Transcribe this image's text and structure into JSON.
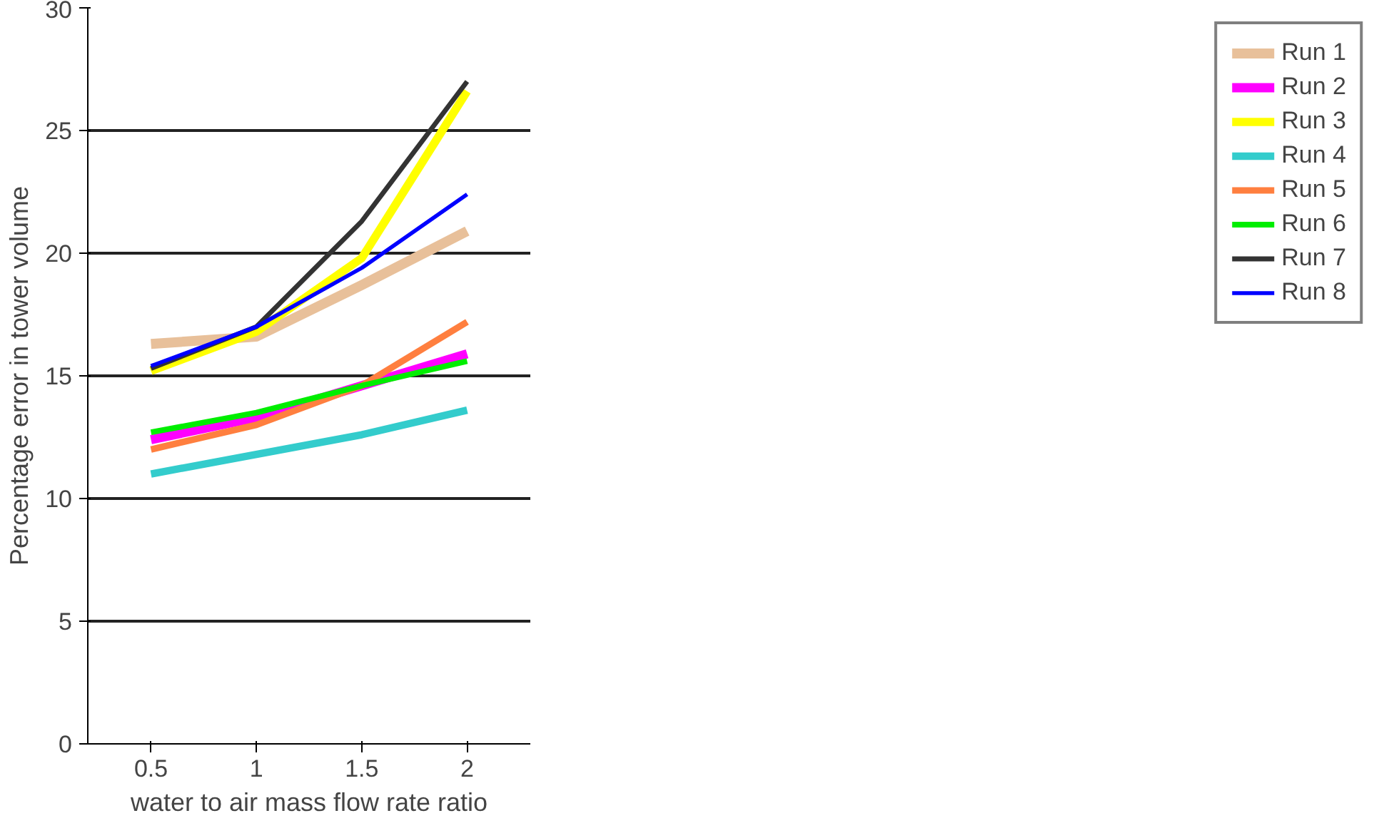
{
  "chart_data": {
    "type": "line",
    "xlabel": "water to air mass flow rate ratio",
    "ylabel": "Percentage error in tower volume",
    "categories": [
      "0.5",
      "1",
      "1.5",
      "2"
    ],
    "ylim": [
      0,
      30
    ],
    "yticks": [
      0,
      5,
      10,
      15,
      20,
      25,
      30
    ],
    "grid": "y",
    "legend": "right",
    "marker": "none",
    "line_style": "solid",
    "series": [
      {
        "name": "Run 1",
        "color": "#e8c09a",
        "values": [
          16.3,
          16.6,
          18.7,
          20.9
        ]
      },
      {
        "name": "Run 2",
        "color": "#ff00ff",
        "values": [
          12.4,
          13.3,
          14.6,
          15.9
        ]
      },
      {
        "name": "Run 3",
        "color": "#ffff00",
        "values": [
          15.2,
          16.8,
          19.8,
          26.6
        ]
      },
      {
        "name": "Run 4",
        "color": "#33cccc",
        "values": [
          11.0,
          11.8,
          12.6,
          13.6
        ]
      },
      {
        "name": "Run 5",
        "color": "#ff7f3f",
        "values": [
          12.0,
          13.0,
          14.6,
          17.2
        ]
      },
      {
        "name": "Run 6",
        "color": "#00ee00",
        "values": [
          12.7,
          13.5,
          14.6,
          15.6
        ]
      },
      {
        "name": "Run 7",
        "color": "#333333",
        "values": [
          15.3,
          17.0,
          21.3,
          27.0
        ]
      },
      {
        "name": "Run 8",
        "color": "#0000ff",
        "values": [
          15.4,
          17.0,
          19.4,
          22.4
        ]
      }
    ]
  }
}
